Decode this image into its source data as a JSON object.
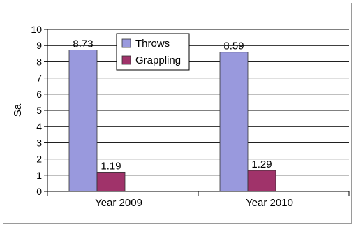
{
  "chart_data": {
    "type": "bar",
    "categories": [
      "Year 2009",
      "Year 2010"
    ],
    "series": [
      {
        "name": "Throws",
        "values": [
          8.73,
          8.59
        ],
        "color": "#9999DD"
      },
      {
        "name": "Grappling",
        "values": [
          1.19,
          1.29
        ],
        "color": "#A0336A"
      }
    ],
    "xlabel": "",
    "ylabel": "Sa",
    "ylim": [
      0,
      10
    ],
    "yticks": [
      "0",
      "1",
      "2",
      "3",
      "4",
      "5",
      "6",
      "7",
      "8",
      "9",
      "10"
    ],
    "data_labels": [
      [
        "8.73",
        "8.59"
      ],
      [
        "1.19",
        "1.29"
      ]
    ],
    "grid": true,
    "legend": "top-center"
  }
}
